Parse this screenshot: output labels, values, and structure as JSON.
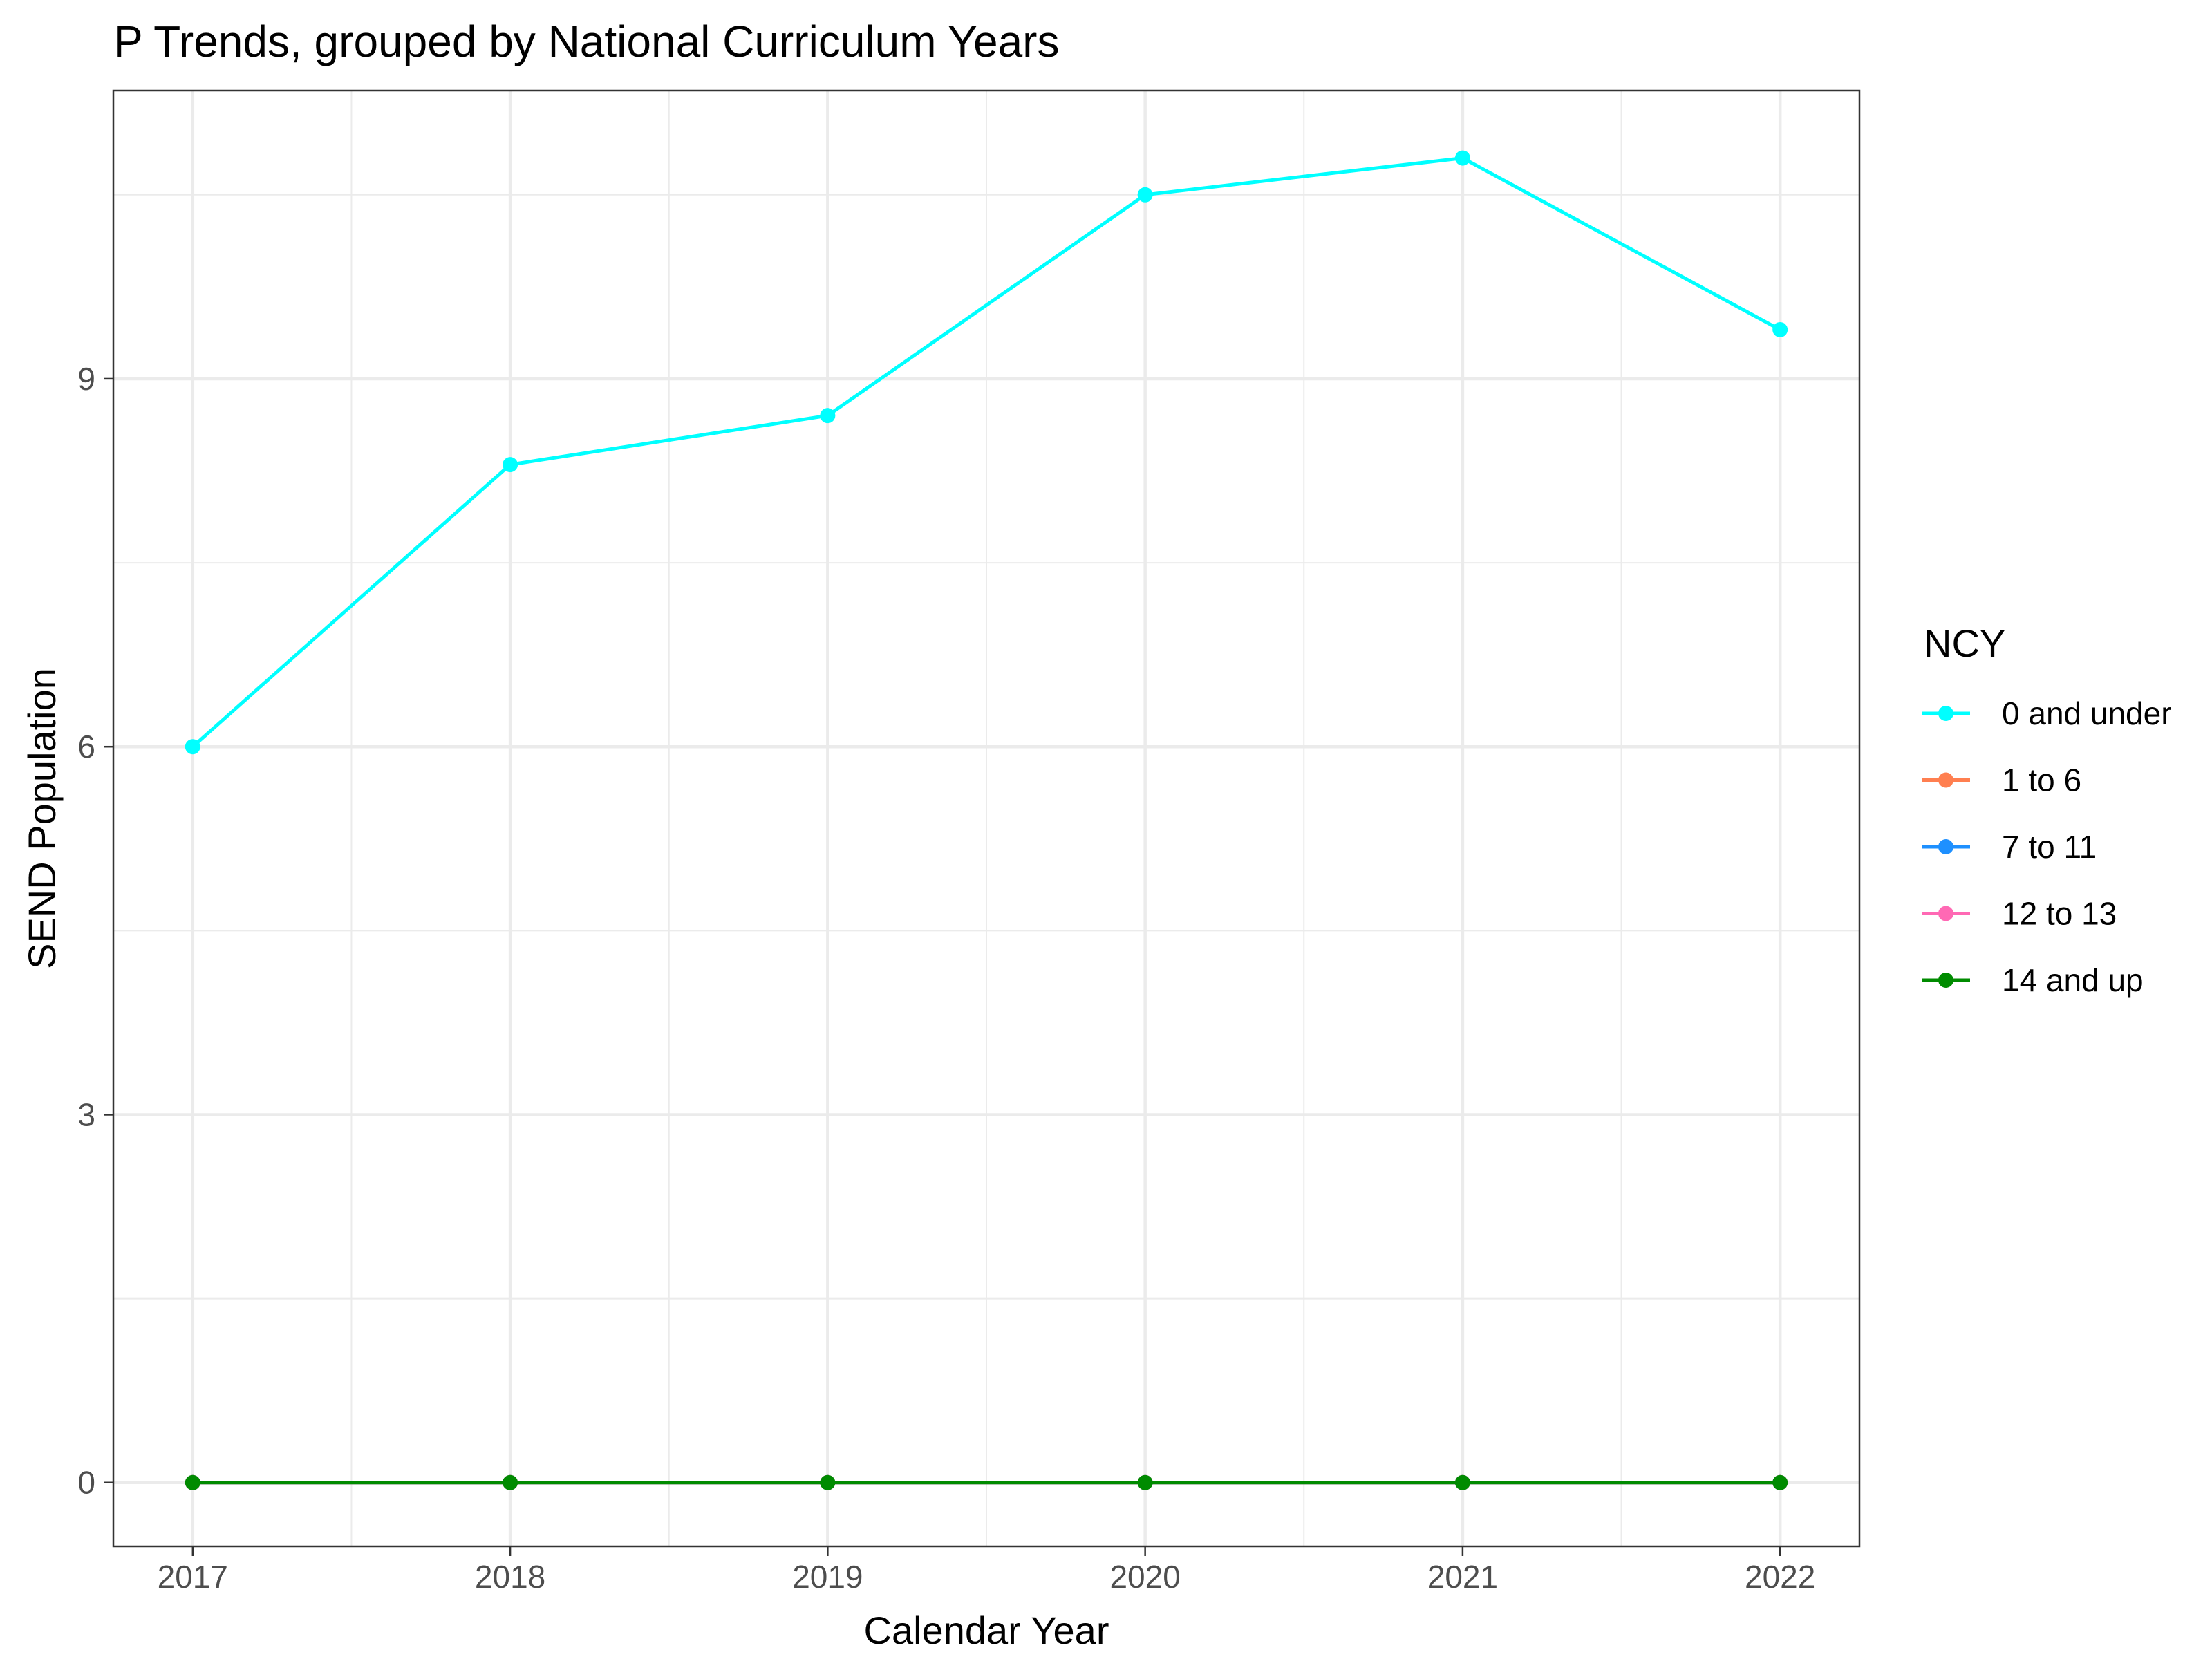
{
  "chart_data": {
    "type": "line",
    "title": "P Trends, grouped by National Curriculum Years",
    "xlabel": "Calendar Year",
    "ylabel": "SEND Population",
    "x": [
      2017,
      2018,
      2019,
      2020,
      2021,
      2022
    ],
    "x_tick_labels": [
      "2017",
      "2018",
      "2019",
      "2020",
      "2021",
      "2022"
    ],
    "xlim": [
      2016.75,
      2022.25
    ],
    "ylim": [
      -0.52,
      11.35
    ],
    "y_ticks": [
      0,
      3,
      6,
      9
    ],
    "y_tick_labels": [
      "0",
      "3",
      "6",
      "9"
    ],
    "grid": true,
    "legend": {
      "title": "NCY",
      "placement": "right"
    },
    "series": [
      {
        "name": "0 and under",
        "color": "#00FFFF",
        "values": [
          6.0,
          8.3,
          8.7,
          10.5,
          10.8,
          9.4
        ]
      },
      {
        "name": "1 to 6",
        "color": "#FF7F50",
        "values": [
          0,
          0,
          0,
          0,
          0,
          0
        ]
      },
      {
        "name": "7 to 11",
        "color": "#1E90FF",
        "values": [
          0,
          0,
          0,
          0,
          0,
          0
        ]
      },
      {
        "name": "12 to 13",
        "color": "#FF69B4",
        "values": [
          0,
          0,
          0,
          0,
          0,
          0
        ]
      },
      {
        "name": "14 and up",
        "color": "#008B00",
        "values": [
          0,
          0,
          0,
          0,
          0,
          0
        ]
      }
    ]
  }
}
